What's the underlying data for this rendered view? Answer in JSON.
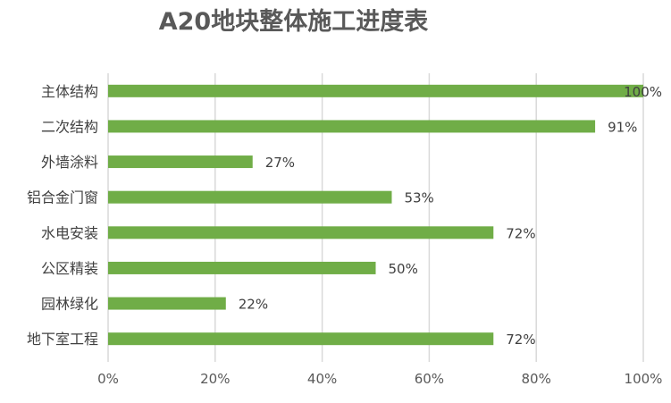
{
  "chart_data": {
    "type": "bar",
    "orientation": "horizontal",
    "title": "A20地块整体施工进度表",
    "categories": [
      "主体结构",
      "二次结构",
      "外墙涂料",
      "铝合金门窗",
      "水电安装",
      "公区精装",
      "园林绿化",
      "地下室工程"
    ],
    "values": [
      100,
      91,
      27,
      53,
      72,
      50,
      22,
      72
    ],
    "data_labels": [
      "100%",
      "91%",
      "27%",
      "53%",
      "72%",
      "50%",
      "22%",
      "72%"
    ],
    "xlim": [
      0,
      100
    ],
    "xticks": [
      0,
      20,
      40,
      60,
      80,
      100
    ],
    "xtick_labels": [
      "0%",
      "20%",
      "40%",
      "60%",
      "80%",
      "100%"
    ],
    "xlabel": "",
    "ylabel": "",
    "grid": "vertical",
    "legend": "none",
    "bar_color": "#70ad47"
  }
}
